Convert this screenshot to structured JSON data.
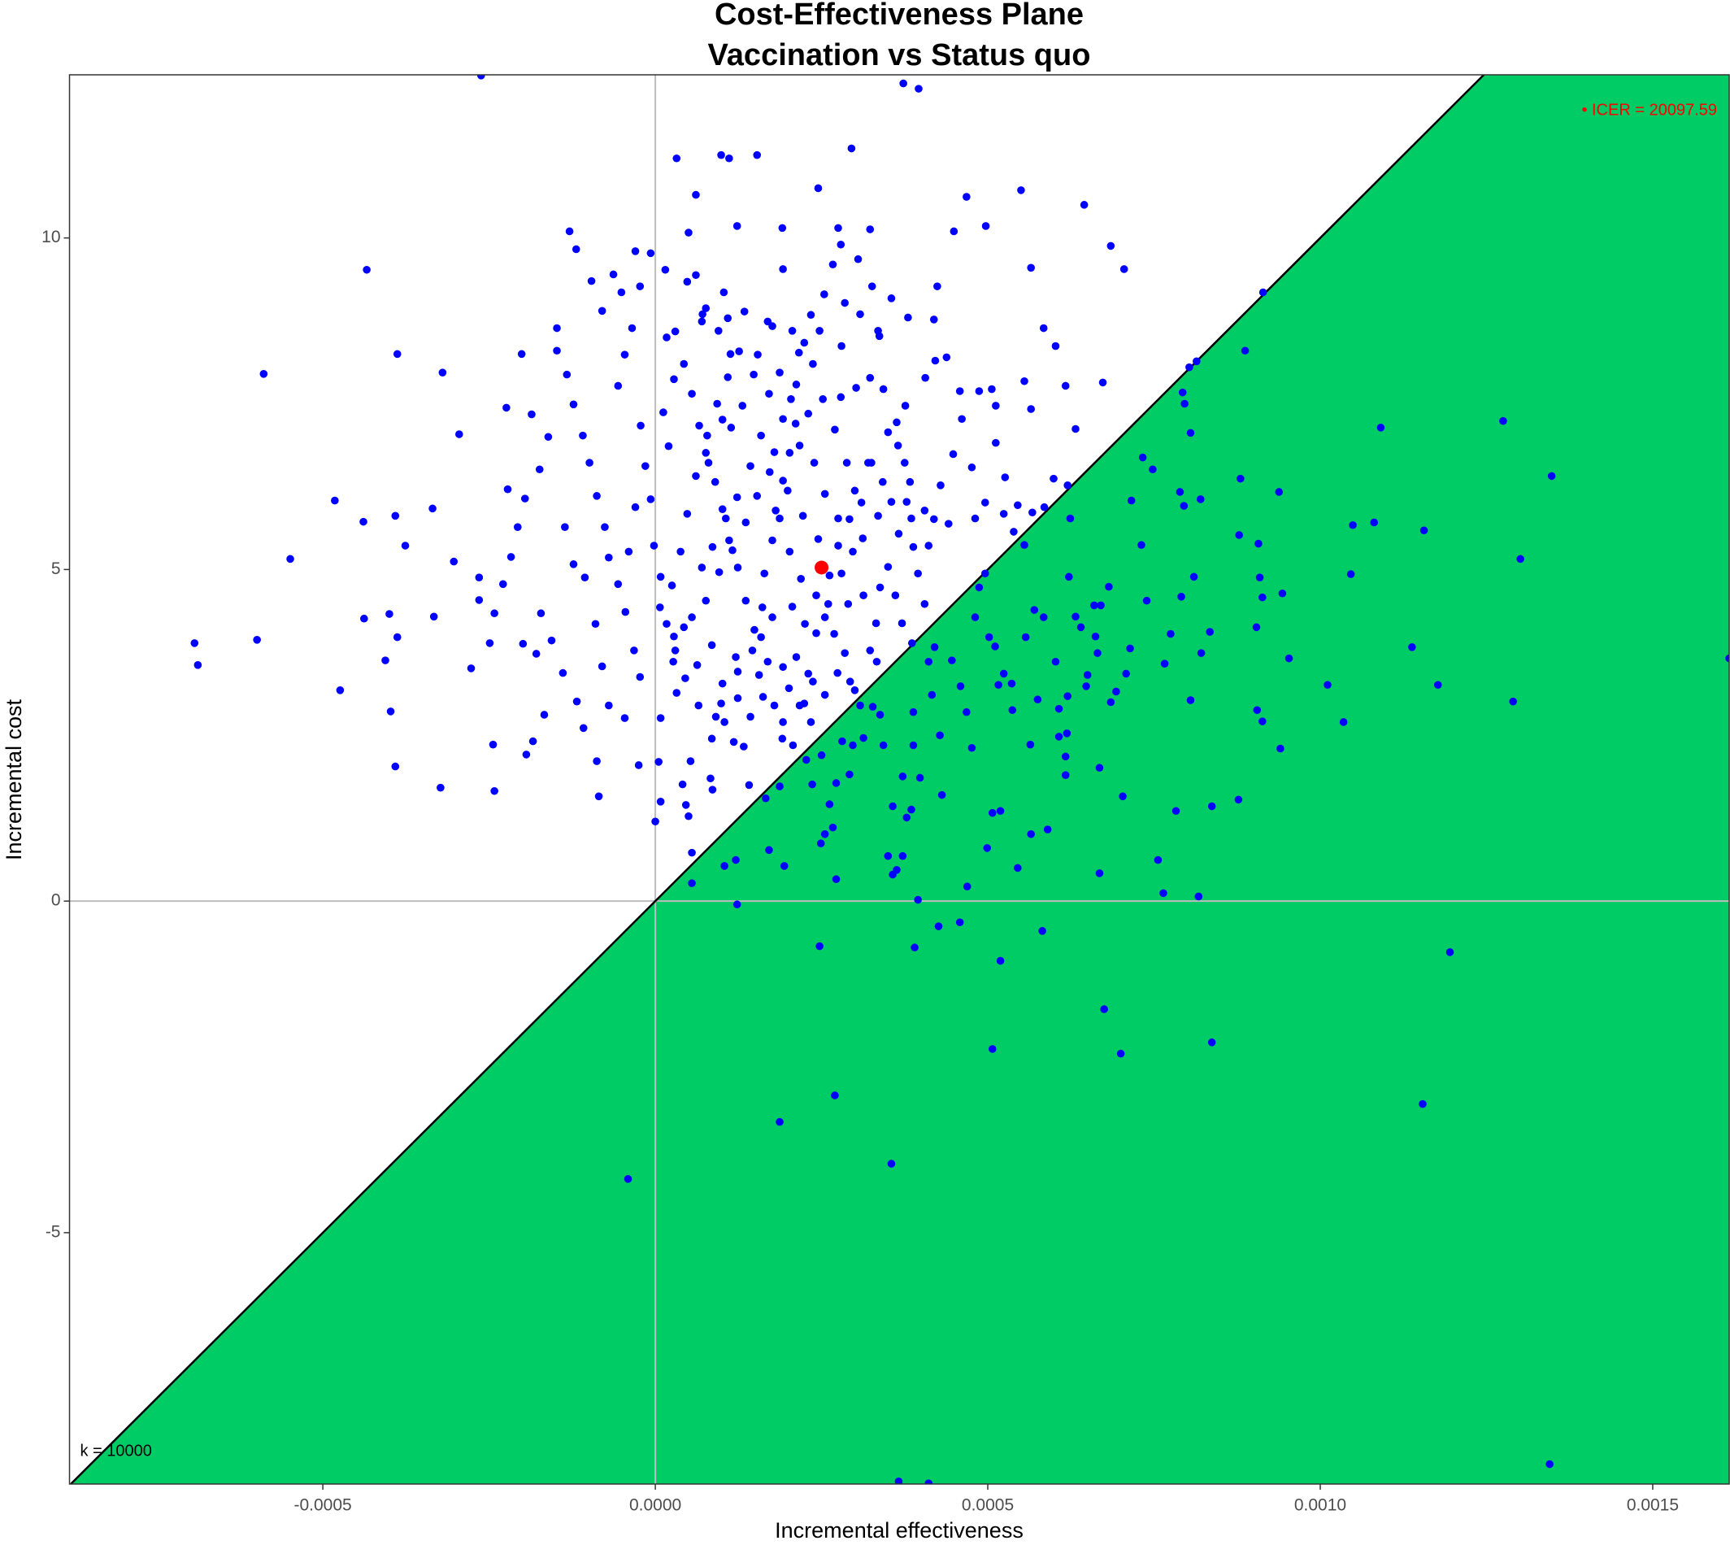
{
  "chart_data": {
    "type": "scatter",
    "title": "Cost-Effectiveness Plane",
    "subtitle": "Vaccination vs Status quo",
    "x_label": "Incremental effectiveness",
    "y_label": "Incremental cost",
    "xlim": [
      -0.000881,
      0.001615
    ],
    "ylim": [
      -8.79,
      12.46
    ],
    "xticks": [
      -0.0005,
      {
        "value": 0,
        "label": "0.0000"
      },
      0.0005,
      {
        "value": 0.001,
        "label": "0.0010"
      },
      0.0015
    ],
    "yticks": [
      -5,
      0,
      5,
      10
    ],
    "reference_lines": {
      "x": 0,
      "y": 0,
      "color": "#bdbdbd"
    },
    "threshold": {
      "slope": 10000,
      "color": "#00cc66"
    },
    "annotations": [
      {
        "text": "k = 10000"
      },
      {
        "text": "• ICER = 20097.59",
        "color": "#ff0000"
      }
    ],
    "series": [
      {
        "color": "#0000ff",
        "x": [
          -0.000262,
          0.000373,
          0.000396,
          0.000295,
          3.2e-05,
          9.9e-05,
          0.000153,
          0.000111,
          0.000245,
          6.1e-05,
          0.00055,
          0.000468,
          0.000645,
          -0.000129,
          5e-05,
          0.000123,
          0.000191,
          0.000275,
          0.000323,
          0.000449,
          0.000497,
          0.000685,
          -0.000119,
          -3e-05,
          -0.000434,
          1.5e-05,
          0.000192,
          0.000565,
          0.000705,
          -6.3e-05,
          0.000914,
          -5.1e-05,
          0.000103,
          0.000326,
          0.000424,
          -0.000589,
          -0.000388,
          -0.00032,
          -0.000148,
          0.000887,
          0.000584,
          0.000814,
          0.000673,
          -0.000295,
          0.001091,
          0.001275,
          0.001348,
          -0.000482,
          -0.000549,
          -0.000693,
          -0.000688,
          -0.000599,
          -0.000474,
          -0.000438,
          -0.000439,
          -0.000391,
          -0.0004,
          -0.000388,
          -0.000406,
          -0.000391,
          -0.000398,
          -0.000323,
          -0.000333,
          -0.000376,
          -0.000335,
          -0.000303,
          -0.000277,
          -0.000244,
          -0.000242,
          -0.000265,
          -0.000222,
          -0.000224,
          -0.000201,
          -0.000186,
          -4.1e-05,
          0.000187,
          0.00027,
          0.000355,
          0.000507,
          0.0007,
          0.000675,
          0.000837,
          0.001154,
          0.001195,
          0.000247,
          0.00039,
          0.000426,
          0.000458,
          0.000519,
          0.000582,
          0.000395,
          0.000123,
          0.000764,
          0.000817,
          0.000756,
          0.000668,
          0.000469,
          0.000499,
          0.000545,
          0.000363,
          0.00035,
          0.000372,
          0.000357,
          5.5e-05,
          0.000104,
          0.000121,
          0.000171,
          0.000194,
          0.000272,
          5.5e-05,
          0.001345,
          0.000366,
          0.000411,
          0.001615,
          0.001301,
          0.00129,
          0.001177,
          0.001138,
          0.001156,
          0.001081,
          0.001049,
          0.001046,
          0.001011,
          0.001035,
          0.00094,
          0.000953,
          0.000943,
          0.000938,
          0.000907,
          0.000878,
          0.00088,
          0.000909,
          0.000913,
          0.000913,
          0.000904,
          0.000905,
          0.000877,
          0.000837,
          0.000834,
          0.000821,
          0.000805,
          0.000791,
          0.00081,
          0.00082,
          0.000789,
          0.000795,
          0.000805,
          0.000793,
          0.000796,
          0.000803,
          0.000783,
          0.000775,
          0.000766,
          0.000748,
          0.000733,
          0.000739,
          0.000731,
          0.000716,
          0.000714,
          0.000708,
          0.000703,
          0.000693,
          0.000685,
          0.000682,
          0.00067,
          0.000665,
          0.000662,
          0.000668,
          0.00066,
          0.00065,
          0.000648,
          0.00064,
          0.000632,
          0.000622,
          0.00062,
          0.000619,
          0.000617,
          0.000617,
          0.000624,
          0.00062,
          0.000607,
          0.000607,
          0.000602,
          0.00059,
          0.000584,
          0.000575,
          0.00057,
          0.000565,
          0.000564,
          0.000557,
          0.000555,
          0.000539,
          0.000537,
          0.000536,
          0.000524,
          0.000519,
          0.000516,
          0.000511,
          0.000507,
          0.000502,
          0.000496,
          0.000487,
          0.000481,
          0.000476,
          0.000468,
          0.000459,
          0.000446,
          0.000431,
          0.000428,
          0.00042,
          0.000416,
          0.000411,
          0.000398,
          0.000388,
          0.000388,
          0.000386,
          0.000385,
          0.000378,
          0.000372,
          0.000357,
          0.000343,
          0.000338,
          0.000333,
          0.000327,
          0.000313,
          0.0003,
          0.000297,
          0.000292,
          0.000281,
          0.000272,
          0.000262,
          0.000249,
          0.000236,
          0.000267,
          0.000255,
          0.000187,
          0.000166,
          1.7e-05,
          1.2e-05,
          2e-05,
          -7e-06,
          -2e-06,
          8e-06,
          7e-06,
          2.8e-05,
          2.7e-05,
          3.2e-05,
          8e-06,
          5e-06,
          8e-06,
          0,
          4.6e-05,
          5e-05,
          4.1e-05,
          5.3e-05,
          8.3e-05,
          8.6e-05,
          9.1e-05,
          9.9e-05,
          0.000124,
          0.000118,
          0.000133,
          0.000141,
          0.000156,
          0.000159,
          0.000161,
          0.000164,
          0.000176,
          0.000181,
          0.000192,
          0.000202,
          0.000211,
          0.000212,
          0.000224,
          0.000247,
          0.000254,
          0.000267,
          0.000279,
          0.000305,
          0.000335,
          0.000343,
          0.000363,
          0.000375,
          0.000385,
          0.000395,
          0.000405,
          0.000411,
          0.000419,
          0.000429,
          0.000448,
          0.000461,
          0.000476,
          0.000496,
          0.000512,
          0.000526,
          0.000545,
          0.000555,
          0.000565,
          0.000602,
          0.000617,
          0.000632,
          0.000585,
          0.000567,
          0.000599,
          0.000524,
          0.000481,
          0.000441,
          0.000405,
          0.000383,
          0.000365,
          0.00035,
          0.000325,
          0.00031,
          0.000292,
          0.000275,
          0.000262,
          0.000242,
          0.000225,
          0.000212,
          0.000201,
          0.000192,
          0.000217,
          0.00023,
          0.000242,
          0.000255,
          0.000269,
          0.000285,
          0.000293,
          0.000308,
          0.000323,
          0.000332,
          0.000338,
          0.00035,
          0.000361,
          0.000371,
          0.000378,
          0.000355,
          0.000335,
          0.000312,
          0.000297,
          0.00028,
          0.00026,
          0.000237,
          0.000224,
          0.000207,
          0.000191,
          0.000179,
          0.000169,
          0.000149,
          0.000136,
          0.000124,
          0.000111,
          0.000101,
          9e-05,
          7.6e-05,
          6.6e-05,
          5.5e-05,
          4.3e-05,
          3e-05,
          7e-05,
          0.000109,
          0.000134,
          0.000169,
          0.000206,
          0.000237,
          0.000252,
          0.00027,
          0.000288,
          0.000255,
          0.000239,
          0.000217,
          0.000192,
          0.000171,
          0.000148,
          0.000126,
          0.000109,
          9.3e-05,
          7.8e-05,
          6.1e-05,
          4.8e-05,
          3.8e-05,
          2.5e-05,
          1.7e-05,
          5.5e-05,
          7.6e-05,
          9.6e-05,
          0.000116,
          0.000136,
          0.000153,
          0.000172,
          0.000187,
          0.000202,
          0.000219,
          0.000206,
          0.000176,
          0.000146,
          0.000121,
          0.000101,
          8.5e-05,
          6.3e-05,
          4.3e-05,
          7e-05,
          8.6e-05,
          0.000106,
          0.000123,
          0.000143,
          0.000159,
          0.000179,
          0.000199,
          0.000222,
          0.000245,
          0.000275,
          0.0003,
          0.00032,
          0.000342,
          0.000366,
          0.000388,
          0.000313,
          0.00029,
          0.000274,
          0.000255,
          0.000234,
          0.000227,
          0.00025,
          0.000192,
          0.000162,
          0.000143,
          0.000124,
          0.000104,
          8.5e-05,
          6.5e-05,
          4.5e-05,
          3e-05,
          -2.3e-05,
          -3.2e-05,
          -4.5e-05,
          -5.6e-05,
          -7e-05,
          -7.6e-05,
          -8.8e-05,
          -9.9e-05,
          -0.000109,
          -0.000123,
          -0.000133,
          -0.000148,
          -0.000161,
          -0.000174,
          -0.000196,
          -0.000207,
          -0.000217,
          -0.000229,
          -0.000242,
          -0.000249,
          -0.000265,
          -0.000172,
          -0.000156,
          -0.000139,
          -0.000118,
          -0.000108,
          -8.8e-05,
          -8.5e-05,
          -7e-05,
          -4.6e-05,
          -2.5e-05,
          -0.000179,
          -0.000199,
          -0.000167,
          -0.000184,
          -0.000194,
          -0.000136,
          -0.000123,
          -0.000106,
          -9e-05,
          -8e-05,
          -5.6e-05,
          -4.6e-05,
          -3.5e-05,
          -2.2e-05,
          -1.5e-05,
          -3e-05,
          -4e-05,
          -2.3e-05,
          -7e-06,
          4.8e-05,
          7.1e-05,
          -8e-05,
          -9.6e-05,
          8e-05,
          0.000101,
          0.000114,
          0.000131,
          0.000154,
          0.000187,
          0.000204,
          0.00023,
          0.000279,
          0.000302,
          0.000323,
          0.000376,
          0.000406,
          0.000421,
          0.000438,
          0.000458,
          0.000487,
          0.000506,
          0.000512,
          0.000419,
          0.00038,
          0.000355,
          0.000337,
          0.00028,
          0.000308,
          0.000285,
          0.000234,
          0.000216,
          0.000176,
          0.000113,
          9.5e-05,
          7.6e-05,
          6.1e-05,
          2.8e-05
        ],
        "values": [
          12.45,
          12.33,
          12.25,
          11.35,
          11.2,
          11.25,
          11.25,
          11.2,
          10.75,
          10.65,
          10.72,
          10.62,
          10.5,
          10.1,
          10.08,
          10.18,
          10.15,
          10.15,
          10.13,
          10.1,
          10.18,
          9.88,
          9.83,
          9.8,
          9.52,
          9.52,
          9.53,
          9.55,
          9.53,
          9.45,
          9.18,
          9.18,
          9.18,
          9.27,
          9.27,
          7.95,
          8.25,
          7.97,
          8.64,
          8.3,
          8.64,
          8.14,
          7.82,
          7.04,
          7.14,
          7.24,
          6.41,
          6.04,
          5.16,
          3.89,
          3.56,
          3.94,
          3.18,
          4.26,
          5.72,
          5.81,
          4.33,
          3.98,
          3.63,
          2.03,
          2.86,
          1.71,
          4.29,
          5.36,
          5.92,
          5.12,
          3.51,
          2.36,
          1.66,
          4.88,
          6.21,
          7.44,
          8.25,
          7.34,
          -4.19,
          -3.33,
          -2.93,
          -3.96,
          -2.23,
          -2.3,
          -1.63,
          -2.13,
          -3.06,
          -0.77,
          -0.68,
          -0.7,
          -0.38,
          -0.32,
          -0.9,
          -0.45,
          0.02,
          -0.05,
          0.12,
          0.07,
          0.62,
          0.42,
          0.22,
          0.8,
          0.5,
          0.47,
          0.68,
          0.68,
          0.4,
          0.27,
          0.53,
          0.62,
          0.77,
          0.53,
          0.33,
          0.73,
          -8.49,
          -8.75,
          -8.78,
          3.66,
          5.16,
          3.01,
          3.26,
          3.83,
          5.59,
          5.71,
          5.67,
          4.93,
          3.26,
          2.7,
          2.3,
          3.66,
          4.64,
          6.17,
          5.39,
          5.52,
          6.37,
          4.88,
          4.58,
          2.71,
          4.13,
          2.88,
          1.53,
          1.43,
          4.06,
          3.74,
          3.03,
          4.59,
          4.89,
          6.06,
          6.17,
          5.96,
          7.06,
          7.67,
          7.5,
          8.05,
          1.36,
          4.03,
          3.58,
          6.51,
          6.69,
          4.53,
          5.37,
          6.04,
          3.81,
          3.43,
          1.58,
          3.16,
          3.0,
          4.74,
          4.46,
          3.74,
          3.99,
          2.01,
          4.46,
          3.41,
          3.24,
          4.13,
          4.29,
          4.89,
          3.09,
          2.53,
          2.18,
          1.9,
          5.77,
          6.27,
          2.9,
          2.48,
          3.61,
          1.08,
          4.28,
          3.04,
          4.39,
          1.01,
          2.36,
          3.98,
          5.37,
          5.57,
          2.88,
          3.28,
          3.43,
          1.36,
          3.26,
          3.84,
          1.33,
          3.98,
          4.94,
          4.73,
          4.28,
          2.31,
          2.85,
          3.24,
          3.63,
          1.6,
          2.5,
          3.83,
          3.11,
          3.61,
          1.86,
          2.35,
          2.85,
          3.89,
          1.38,
          1.26,
          1.88,
          1.43,
          2.35,
          2.81,
          3.61,
          2.93,
          2.46,
          3.18,
          2.35,
          1.91,
          2.41,
          1.78,
          1.46,
          0.87,
          1.76,
          1.11,
          1.01,
          1.73,
          1.55,
          8.5,
          7.37,
          6.86,
          6.06,
          5.36,
          4.89,
          4.43,
          3.99,
          3.61,
          3.14,
          2.76,
          2.1,
          1.5,
          1.2,
          1.45,
          1.28,
          1.76,
          2.11,
          1.85,
          1.68,
          2.78,
          2.98,
          3.46,
          2.4,
          2.33,
          1.75,
          3.41,
          3.98,
          4.43,
          4.94,
          5.44,
          5.89,
          6.34,
          6.76,
          7.2,
          7.79,
          8.42,
          8.6,
          9.15,
          9.6,
          9.9,
          9.68,
          8.6,
          7.72,
          7.22,
          6.61,
          5.77,
          4.94,
          4.48,
          5.36,
          5.76,
          6.27,
          6.74,
          7.27,
          6.54,
          6.01,
          6.91,
          6.39,
          5.97,
          7.84,
          7.42,
          8.37,
          7.77,
          7.12,
          5.94,
          5.86,
          6.37,
          5.84,
          5.77,
          5.69,
          5.89,
          6.32,
          6.87,
          7.07,
          6.61,
          6.01,
          5.76,
          5.36,
          4.91,
          4.61,
          4.18,
          3.68,
          3.21,
          2.7,
          2.95,
          3.43,
          4.04,
          4.28,
          4.03,
          3.74,
          3.31,
          2.95,
          3.78,
          4.19,
          4.73,
          5.04,
          4.61,
          4.19,
          6.02,
          6.02,
          5.81,
          5.47,
          5.27,
          4.94,
          4.48,
          3.31,
          2.98,
          2.35,
          2.45,
          2.95,
          3.61,
          4.09,
          4.53,
          5.03,
          5.44,
          5.91,
          6.32,
          6.76,
          7.17,
          7.65,
          8.1,
          8.59,
          8.74,
          8.79,
          8.89,
          8.74,
          8.6,
          8.1,
          7.57,
          7.11,
          6.61,
          6.14,
          6.61,
          6.87,
          7.27,
          7.65,
          7.94,
          8.29,
          7.9,
          7.5,
          7.02,
          6.41,
          5.84,
          5.27,
          4.76,
          4.18,
          4.28,
          4.53,
          4.96,
          5.29,
          5.71,
          6.11,
          6.47,
          5.77,
          5.27,
          4.86,
          4.44,
          4.28,
          3.78,
          3.68,
          3.28,
          3.86,
          3.56,
          4.13,
          5.03,
          5.34,
          5.77,
          6.09,
          6.56,
          7.02,
          6.77,
          6.19,
          5.81,
          5.46,
          5.77,
          6.19,
          6.61,
          6.32,
          5.54,
          5.34,
          4.61,
          4.48,
          3.44,
          3.11,
          2.7,
          2.13,
          2.2,
          3.53,
          3.08,
          2.78,
          3.06,
          2.7,
          2.45,
          2.95,
          3.36,
          3.78,
          3.38,
          3.78,
          4.36,
          4.78,
          5.18,
          5.64,
          6.11,
          6.61,
          7.02,
          7.49,
          7.94,
          8.3,
          7.0,
          6.51,
          6.07,
          5.64,
          5.19,
          4.78,
          4.34,
          3.89,
          4.54,
          4.34,
          3.93,
          3.44,
          3.01,
          2.61,
          2.11,
          1.58,
          2.95,
          2.76,
          2.05,
          3.73,
          3.88,
          2.81,
          2.41,
          2.21,
          5.64,
          5.08,
          4.88,
          4.18,
          3.54,
          7.77,
          8.24,
          8.64,
          7.17,
          6.56,
          5.94,
          5.27,
          9.27,
          9.77,
          9.34,
          8.85,
          8.9,
          9.35,
          6.61,
          7.26,
          7.14,
          7.47,
          8.24,
          7.97,
          7.57,
          7.35,
          7.6,
          7.74,
          7.89,
          7.47,
          7.89,
          8.15,
          8.2,
          7.69,
          7.69,
          7.72,
          7.47,
          8.77,
          8.8,
          9.09,
          8.52,
          8.37,
          8.85,
          9.02,
          8.84,
          8.27,
          8.67,
          8.25,
          8.6,
          8.94,
          9.44,
          7.87
        ]
      },
      {
        "color": "#ff0000",
        "x": [
          0.00025
        ],
        "values": [
          5.03
        ]
      }
    ]
  }
}
